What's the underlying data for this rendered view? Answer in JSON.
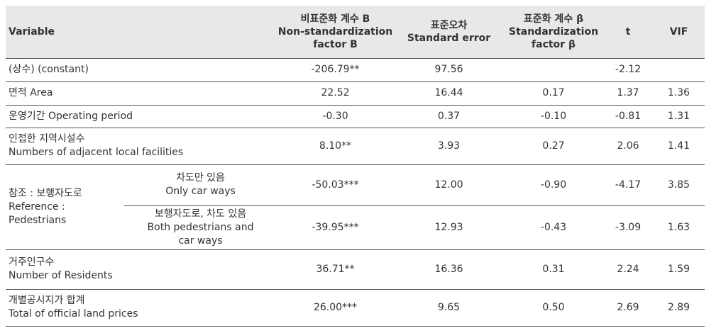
{
  "table": {
    "header": [
      [
        "Variable"
      ],
      [
        "비표준화 계수 B",
        "Non-standardization",
        "factor B"
      ],
      [
        "표준오차",
        "Standard error"
      ],
      [
        "표준화 계수 β",
        "Standardization",
        "factor β"
      ],
      [
        "t"
      ],
      [
        "VIF"
      ]
    ],
    "rows": [
      {
        "label": [
          "(상수) (constant)"
        ],
        "values": [
          "-206.79**",
          "97.56",
          null,
          "-2.12",
          null
        ]
      },
      {
        "label": [
          "면적 Area"
        ],
        "values": [
          "22.52",
          "16.44",
          "0.17",
          "1.37",
          "1.36"
        ]
      },
      {
        "label": [
          "운영기간 Operating period"
        ],
        "values": [
          "-0.30",
          "0.37",
          "-0.10",
          "-0.81",
          "1.31"
        ]
      },
      {
        "label": [
          "인접한 지역시설수",
          "Numbers of adjacent local facilities"
        ],
        "values": [
          "8.10**",
          "3.93",
          "0.27",
          "2.06",
          "1.41"
        ]
      },
      {
        "group": [
          "참조 : 보행자도로",
          "Reference :",
          "Pedestrians"
        ],
        "label": [
          "차도만 있음",
          "Only car ways"
        ],
        "values": [
          "-50.03***",
          "12.00",
          "-0.90",
          "-4.17",
          "3.85"
        ]
      },
      {
        "label": [
          "보행자도로, 차도 있음",
          "Both pedestrians and",
          "car ways"
        ],
        "values": [
          "-39.95***",
          "12.93",
          "-0.43",
          "-3.09",
          "1.63"
        ]
      },
      {
        "label": [
          "거주인구수",
          "Number of Residents"
        ],
        "values": [
          "36.71**",
          "16.36",
          "0.31",
          "2.24",
          "1.59"
        ]
      },
      {
        "label": [
          "개별공시지가 합계",
          "Total of official land prices"
        ],
        "values": [
          "26.00***",
          "9.65",
          "0.50",
          "2.69",
          "2.89"
        ]
      }
    ]
  }
}
